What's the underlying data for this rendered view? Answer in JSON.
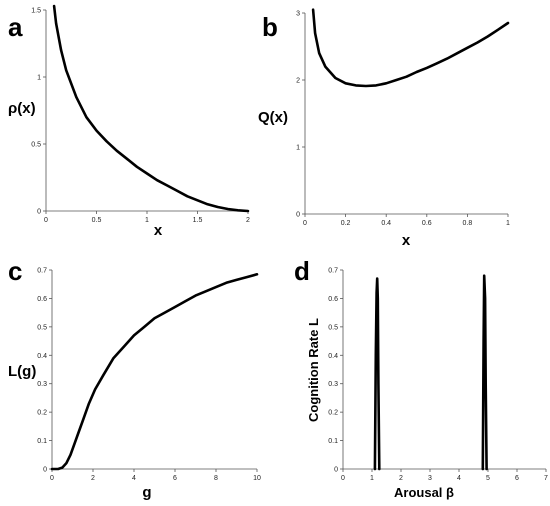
{
  "chart_data": [
    {
      "panel": "a",
      "type": "line",
      "xlabel": "x",
      "ylabel": "ρ(x)",
      "xlim": [
        0,
        2
      ],
      "ylim": [
        0,
        1.5
      ],
      "xticks": [
        "0",
        "0.5",
        "1",
        "1.5",
        "2"
      ],
      "yticks": [
        "0",
        "0.5",
        "1",
        "1.5"
      ],
      "series": [
        {
          "x": [
            0.08,
            0.1,
            0.15,
            0.2,
            0.3,
            0.4,
            0.5,
            0.6,
            0.7,
            0.8,
            0.9,
            1.0,
            1.1,
            1.2,
            1.3,
            1.4,
            1.5,
            1.6,
            1.7,
            1.8,
            1.9,
            2.0
          ],
          "y": [
            1.53,
            1.4,
            1.2,
            1.05,
            0.85,
            0.7,
            0.6,
            0.52,
            0.45,
            0.39,
            0.33,
            0.28,
            0.23,
            0.19,
            0.15,
            0.11,
            0.08,
            0.05,
            0.03,
            0.015,
            0.005,
            0.0
          ]
        }
      ]
    },
    {
      "panel": "b",
      "type": "line",
      "xlabel": "x",
      "ylabel": "Q(x)",
      "xlim": [
        0,
        1
      ],
      "ylim": [
        0,
        3
      ],
      "xticks": [
        "0",
        "0.2",
        "0.4",
        "0.6",
        "0.8",
        "1"
      ],
      "yticks": [
        "0",
        "1",
        "2",
        "3"
      ],
      "series": [
        {
          "x": [
            0.04,
            0.05,
            0.07,
            0.1,
            0.15,
            0.2,
            0.25,
            0.3,
            0.35,
            0.4,
            0.45,
            0.5,
            0.55,
            0.6,
            0.65,
            0.7,
            0.75,
            0.8,
            0.85,
            0.9,
            0.95,
            1.0
          ],
          "y": [
            3.05,
            2.7,
            2.4,
            2.2,
            2.03,
            1.95,
            1.92,
            1.91,
            1.92,
            1.95,
            2.0,
            2.05,
            2.12,
            2.18,
            2.25,
            2.32,
            2.4,
            2.48,
            2.56,
            2.65,
            2.75,
            2.85
          ]
        }
      ]
    },
    {
      "panel": "c",
      "type": "line",
      "xlabel": "g",
      "ylabel": "L(g)",
      "xlim": [
        0,
        10
      ],
      "ylim": [
        0,
        0.7
      ],
      "xticks": [
        "0",
        "2",
        "4",
        "6",
        "8",
        "10"
      ],
      "yticks": [
        "0",
        "0.1",
        "0.2",
        "0.3",
        "0.4",
        "0.5",
        "0.6",
        "0.7"
      ],
      "series": [
        {
          "x": [
            0.0,
            0.3,
            0.5,
            0.7,
            0.9,
            1.1,
            1.3,
            1.5,
            1.8,
            2.1,
            2.5,
            3.0,
            3.5,
            4.0,
            4.5,
            5.0,
            5.5,
            6.0,
            6.5,
            7.0,
            7.5,
            8.0,
            8.5,
            9.0,
            9.5,
            10.0
          ],
          "y": [
            0.0,
            0.0,
            0.005,
            0.02,
            0.05,
            0.09,
            0.13,
            0.17,
            0.23,
            0.28,
            0.33,
            0.39,
            0.43,
            0.47,
            0.5,
            0.53,
            0.55,
            0.57,
            0.59,
            0.61,
            0.625,
            0.64,
            0.655,
            0.665,
            0.675,
            0.685
          ]
        }
      ]
    },
    {
      "panel": "d",
      "type": "line",
      "xlabel": "Arousal β",
      "ylabel": "Cognition Rate L",
      "xlim": [
        0,
        7
      ],
      "ylim": [
        0,
        0.7
      ],
      "xticks": [
        "0",
        "1",
        "2",
        "3",
        "4",
        "5",
        "6",
        "7"
      ],
      "yticks": [
        "0",
        "0.1",
        "0.2",
        "0.3",
        "0.4",
        "0.5",
        "0.6",
        "0.7"
      ],
      "series": [
        {
          "x": [
            1.1,
            1.13,
            1.16,
            1.18,
            1.2,
            1.22,
            1.25
          ],
          "y": [
            0.0,
            0.4,
            0.62,
            0.67,
            0.6,
            0.3,
            0.0
          ]
        },
        {
          "x": [
            4.82,
            4.85,
            4.87,
            4.9,
            4.92,
            4.95
          ],
          "y": [
            0.0,
            0.45,
            0.68,
            0.6,
            0.3,
            0.0
          ]
        }
      ]
    }
  ],
  "panel_labels": [
    "a",
    "b",
    "c",
    "d"
  ]
}
